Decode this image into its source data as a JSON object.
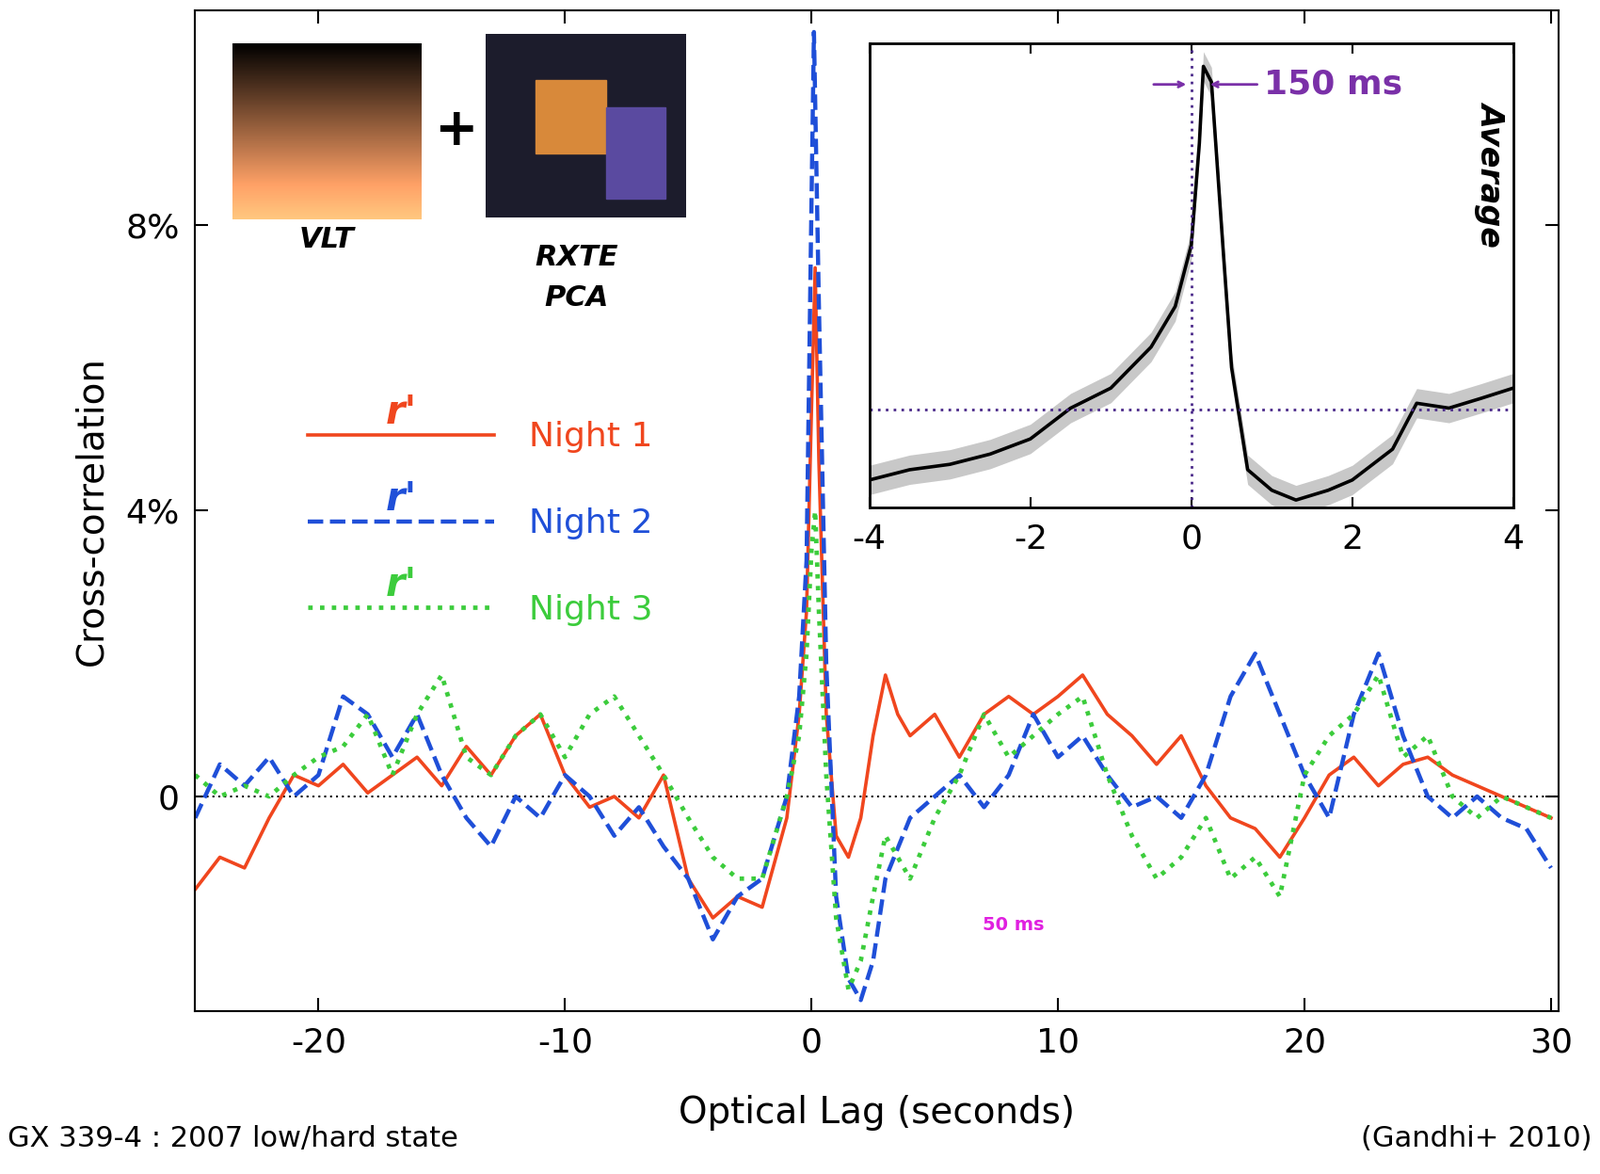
{
  "chart_data": [
    {
      "type": "line",
      "x_label": "Optical Lag (seconds)",
      "y_label": "Cross-correlation",
      "xlim": [
        -25,
        30.3
      ],
      "ylim": [
        -3,
        11
      ],
      "xticks": [
        -20,
        -10,
        0,
        10,
        20,
        30
      ],
      "yticks": [
        0,
        {
          "value": 4,
          "label": "4%"
        },
        {
          "value": 8,
          "label": "8%"
        }
      ],
      "legend": "upper left",
      "annotations": [
        "VLT",
        "+",
        "RXTE\nPCA",
        "50 ms"
      ],
      "series": [
        {
          "name": "Night 1",
          "label": "r'",
          "color": "#f0461e",
          "line_style": "solid",
          "x": [
            -25,
            -24,
            -23,
            -22,
            -21,
            -20,
            -19,
            -18,
            -17,
            -16,
            -15,
            -14,
            -13,
            -12,
            -11,
            -10,
            -9,
            -8,
            -7,
            -6,
            -5,
            -4,
            -3,
            -2,
            -1,
            -0.5,
            -0.2,
            0,
            0.15,
            0.3,
            0.6,
            1,
            1.5,
            2,
            2.5,
            3,
            3.5,
            4,
            5,
            6,
            7,
            8,
            9,
            10,
            11,
            12,
            13,
            14,
            15,
            16,
            17,
            18,
            19,
            20,
            21,
            22,
            23,
            24,
            25,
            26,
            27,
            28,
            29,
            30
          ],
          "values": [
            -1.3,
            -0.85,
            -1.0,
            -0.3,
            0.3,
            0.15,
            0.45,
            0.05,
            0.3,
            0.55,
            0.15,
            0.7,
            0.3,
            0.85,
            1.15,
            0.3,
            -0.15,
            0,
            -0.3,
            0.3,
            -1.15,
            -1.7,
            -1.4,
            -1.55,
            -0.3,
            1.15,
            2.6,
            5.4,
            7.4,
            4.7,
            1.15,
            -0.55,
            -0.85,
            -0.3,
            0.85,
            1.7,
            1.15,
            0.85,
            1.15,
            0.55,
            1.15,
            1.4,
            1.15,
            1.4,
            1.7,
            1.15,
            0.85,
            0.45,
            0.85,
            0.15,
            -0.3,
            -0.45,
            -0.85,
            -0.3,
            0.3,
            0.55,
            0.15,
            0.45,
            0.55,
            0.3,
            0.15,
            0,
            -0.15,
            -0.3
          ]
        },
        {
          "name": "Night 2",
          "label": "r'",
          "color": "#1f4fd8",
          "line_style": "dashed",
          "x": [
            -25,
            -24,
            -23,
            -22,
            -21,
            -20,
            -19,
            -18,
            -17,
            -16,
            -15,
            -14,
            -13,
            -12,
            -11,
            -10,
            -9,
            -8,
            -7,
            -6,
            -5,
            -4,
            -3,
            -2,
            -1,
            -0.5,
            -0.2,
            0,
            0.1,
            0.3,
            0.6,
            1,
            1.5,
            2,
            2.5,
            3,
            4,
            5,
            6,
            7,
            8,
            9,
            10,
            11,
            12,
            13,
            14,
            15,
            16,
            17,
            18,
            19,
            20,
            21,
            22,
            23,
            24,
            25,
            26,
            27,
            28,
            29,
            30
          ],
          "values": [
            -0.3,
            0.45,
            0.15,
            0.55,
            0,
            0.3,
            1.4,
            1.15,
            0.55,
            1.15,
            0.3,
            -0.3,
            -0.7,
            0,
            -0.3,
            0.3,
            0,
            -0.55,
            -0.15,
            -0.7,
            -1.15,
            -2.0,
            -1.4,
            -1.15,
            0,
            1.4,
            3.3,
            8.3,
            10.7,
            6.9,
            1.85,
            -1.4,
            -2.55,
            -2.85,
            -2.3,
            -1.15,
            -0.3,
            0,
            0.3,
            -0.15,
            0.3,
            1.15,
            0.55,
            0.85,
            0.3,
            -0.15,
            0,
            -0.3,
            0.3,
            1.4,
            2.0,
            1.15,
            0.3,
            -0.3,
            1.15,
            2.0,
            0.85,
            0,
            -0.3,
            0,
            -0.3,
            -0.45,
            -1.0
          ]
        },
        {
          "name": "Night 3",
          "label": "r'",
          "color": "#3ccc3c",
          "line_style": "dotted",
          "x": [
            -25,
            -24,
            -23,
            -22,
            -21,
            -20,
            -19,
            -18,
            -17,
            -16,
            -15,
            -14,
            -13,
            -12,
            -11,
            -10,
            -9,
            -8,
            -7,
            -6,
            -5,
            -4,
            -3,
            -2,
            -1,
            -0.5,
            -0.2,
            0,
            0.15,
            0.3,
            0.6,
            1,
            1.5,
            2,
            2.5,
            3,
            4,
            5,
            6,
            7,
            8,
            9,
            10,
            11,
            12,
            13,
            14,
            15,
            16,
            17,
            18,
            19,
            20,
            21,
            22,
            23,
            24,
            25,
            26,
            27,
            28,
            29,
            30
          ],
          "values": [
            0.3,
            0,
            0.15,
            0,
            0.3,
            0.55,
            0.7,
            1.15,
            0.3,
            1.15,
            1.7,
            0.55,
            0.3,
            0.85,
            1.15,
            0.55,
            1.15,
            1.4,
            0.85,
            0.3,
            -0.3,
            -0.85,
            -1.15,
            -1.15,
            0,
            0.85,
            2.0,
            3.45,
            4.0,
            2.6,
            0.3,
            -1.7,
            -2.7,
            -2.3,
            -1.4,
            -0.55,
            -1.15,
            -0.3,
            0.3,
            1.15,
            0.55,
            0.85,
            1.15,
            1.4,
            0.3,
            -0.55,
            -1.15,
            -0.85,
            -0.3,
            -1.15,
            -0.85,
            -1.4,
            0.3,
            0.85,
            1.15,
            1.7,
            0.55,
            0.85,
            0,
            -0.3,
            0,
            -0.15,
            -0.3
          ]
        }
      ]
    },
    {
      "type": "line",
      "xlim": [
        -4,
        4
      ],
      "ylim": [
        -2,
        7.5
      ],
      "xticks": [
        -4,
        -2,
        0,
        2,
        4
      ],
      "tick_labels": "x",
      "annotations": [
        "150 ms",
        "Average"
      ],
      "series": [
        {
          "color": "#000000",
          "line_style": "solid",
          "x": [
            -4,
            -3.5,
            -3,
            -2.5,
            -2,
            -1.5,
            -1,
            -0.5,
            -0.2,
            0,
            0.1,
            0.15,
            0.25,
            0.4,
            0.5,
            0.7,
            1.0,
            1.3,
            1.7,
            2.0,
            2.5,
            2.8,
            3.2,
            3.6,
            4.0
          ],
          "values": [
            -1.44,
            -1.23,
            -1.12,
            -0.91,
            -0.6,
            0.03,
            0.44,
            1.28,
            2.11,
            3.37,
            5.45,
            7.02,
            6.7,
            3.16,
            0.86,
            -1.23,
            -1.65,
            -1.85,
            -1.65,
            -1.44,
            -0.81,
            0.13,
            0.03,
            0.23,
            0.44
          ],
          "errors": [
            0.3,
            0.3,
            0.3,
            0.3,
            0.3,
            0.3,
            0.3,
            0.3,
            0.3,
            0.3,
            0.3,
            0.3,
            0.3,
            0.3,
            0.3,
            0.3,
            0.3,
            0.3,
            0.3,
            0.3,
            0.3,
            0.3,
            0.3,
            0.3,
            0.3
          ]
        }
      ]
    }
  ],
  "caption": "GX 339-4 : 2007 low/hard state",
  "source": "(Gandhi+ 2010)"
}
